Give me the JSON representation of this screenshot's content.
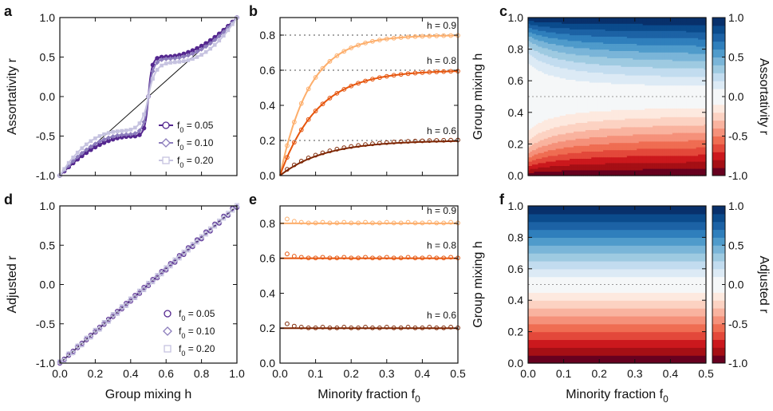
{
  "chart_data": [
    {
      "panel": "a",
      "type": "line",
      "xlabel": "",
      "ylabel": "Assortativity r",
      "xlim": [
        0,
        1
      ],
      "ylim": [
        -1,
        1
      ],
      "xticks": [],
      "yticks": [
        "-1.0",
        "-0.5",
        "0.0",
        "0.5",
        "1.0"
      ],
      "reference_line": "diagonal r = 2h - 1",
      "series": [
        {
          "name": "f0 = 0.05",
          "legend": {
            "prefix": "f",
            "sub": "0",
            "suffix": " = 0.05"
          },
          "color": "#54278f",
          "marker": "circle",
          "f0": 0.05
        },
        {
          "name": "f0 = 0.10",
          "legend": {
            "prefix": "f",
            "sub": "0",
            "suffix": " = 0.10"
          },
          "color": "#8c7dbc",
          "marker": "diamond",
          "f0": 0.1
        },
        {
          "name": "f0 = 0.20",
          "legend": {
            "prefix": "f",
            "sub": "0",
            "suffix": " = 0.20"
          },
          "color": "#c6c3e0",
          "marker": "square",
          "f0": 0.2
        }
      ]
    },
    {
      "panel": "b",
      "type": "line",
      "xlabel": "",
      "ylabel": "",
      "xlim": [
        0,
        0.5
      ],
      "ylim": [
        0,
        0.9
      ],
      "xticks": [],
      "yticks": [
        "0.0",
        "0.2",
        "0.4",
        "0.6",
        "0.8"
      ],
      "series": [
        {
          "name": "h = 0.9",
          "h": 0.9,
          "asymptote": 0.8,
          "color": "#fdae6b"
        },
        {
          "name": "h = 0.8",
          "h": 0.8,
          "asymptote": 0.6,
          "color": "#e6550d"
        },
        {
          "name": "h = 0.6",
          "h": 0.6,
          "asymptote": 0.2,
          "color": "#7f2704"
        }
      ]
    },
    {
      "panel": "c",
      "type": "heatmap",
      "xlabel": "",
      "ylabel": "Group mixing h",
      "colorbar_label": "Assortativity r",
      "xlim": [
        0,
        0.5
      ],
      "ylim": [
        0,
        1
      ],
      "xticks": [],
      "yticks": [
        "0.0",
        "0.2",
        "0.4",
        "0.6",
        "0.8",
        "1.0"
      ],
      "colorbar_ticks": [
        "-1.0",
        "-0.5",
        "0.0",
        "0.5",
        "1.0"
      ],
      "levels": [
        -1,
        -0.9,
        -0.8,
        -0.7,
        -0.6,
        -0.5,
        -0.4,
        -0.3,
        -0.2,
        -0.1,
        0.1,
        0.2,
        0.3,
        0.4,
        0.5,
        0.6,
        0.7,
        0.8,
        0.9,
        1.0
      ]
    },
    {
      "panel": "d",
      "type": "scatter",
      "xlabel": "Group mixing h",
      "ylabel": "Adjusted r",
      "xlim": [
        0,
        1
      ],
      "ylim": [
        -1,
        1
      ],
      "xticks": [
        "0.0",
        "0.2",
        "0.4",
        "0.6",
        "0.8",
        "1.0"
      ],
      "yticks": [
        "-1.0",
        "-0.5",
        "0.0",
        "0.5",
        "1.0"
      ],
      "reference_line": "diagonal adjusted r = 2h - 1",
      "series": [
        {
          "name": "f0 = 0.05",
          "legend": {
            "prefix": "f",
            "sub": "0",
            "suffix": " = 0.05"
          },
          "color": "#54278f",
          "marker": "circle"
        },
        {
          "name": "f0 = 0.10",
          "legend": {
            "prefix": "f",
            "sub": "0",
            "suffix": " = 0.10"
          },
          "color": "#8c7dbc",
          "marker": "diamond"
        },
        {
          "name": "f0 = 0.20",
          "legend": {
            "prefix": "f",
            "sub": "0",
            "suffix": " = 0.20"
          },
          "color": "#c6c3e0",
          "marker": "square"
        }
      ]
    },
    {
      "panel": "e",
      "type": "line",
      "xlabel": "Minority fraction f0",
      "xlabel_parts": {
        "prefix": "Minority fraction f",
        "sub": "0"
      },
      "ylabel": "",
      "xlim": [
        0,
        0.5
      ],
      "ylim": [
        0,
        0.9
      ],
      "xticks": [
        "0.0",
        "0.1",
        "0.2",
        "0.3",
        "0.4",
        "0.5"
      ],
      "yticks": [
        "0.0",
        "0.2",
        "0.4",
        "0.6",
        "0.8"
      ],
      "series": [
        {
          "name": "h = 0.9",
          "h": 0.9,
          "value": 0.8,
          "color": "#fdae6b"
        },
        {
          "name": "h = 0.8",
          "h": 0.8,
          "value": 0.6,
          "color": "#e6550d"
        },
        {
          "name": "h = 0.6",
          "h": 0.6,
          "value": 0.2,
          "color": "#7f2704"
        }
      ]
    },
    {
      "panel": "f",
      "type": "heatmap",
      "xlabel": "Minority fraction f0",
      "xlabel_parts": {
        "prefix": "Minority fraction f",
        "sub": "0"
      },
      "ylabel": "Group mixing h",
      "colorbar_label": "Adjusted r",
      "xlim": [
        0,
        0.5
      ],
      "ylim": [
        0,
        1
      ],
      "xticks": [
        "0.0",
        "0.1",
        "0.2",
        "0.3",
        "0.4",
        "0.5"
      ],
      "yticks": [
        "0.0",
        "0.2",
        "0.4",
        "0.6",
        "0.8",
        "1.0"
      ],
      "colorbar_ticks": [
        "-1.0",
        "-0.5",
        "0.0",
        "0.5",
        "1.0"
      ]
    }
  ],
  "colormap": [
    "#67001f",
    "#a50f15",
    "#cb181d",
    "#e3483a",
    "#ef6d52",
    "#f5917a",
    "#f9b39f",
    "#fcd2c2",
    "#fde9df",
    "#f5f7f8",
    "#f5f7f8",
    "#dceaf5",
    "#c2dcef",
    "#9ecae1",
    "#7ab5d8",
    "#4f9bcb",
    "#2f7fbc",
    "#1c62a5",
    "#0b4b8c",
    "#08306b"
  ]
}
